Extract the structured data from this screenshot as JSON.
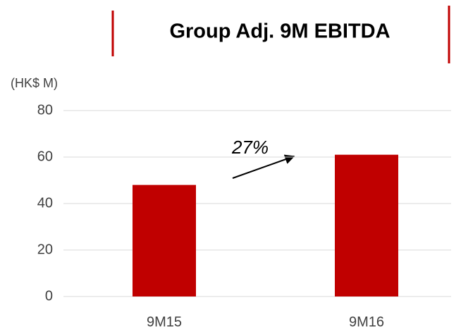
{
  "chart_data": {
    "type": "bar",
    "title": "Group Adj. 9M EBITDA",
    "y_label": "(HK$ M)",
    "categories": [
      "9M15",
      "9M16"
    ],
    "values": [
      48,
      61
    ],
    "color": "#c00000",
    "ylim": [
      0,
      80
    ],
    "yticks": [
      0,
      20,
      40,
      60,
      80
    ],
    "grid": true,
    "annotation": "27%"
  }
}
